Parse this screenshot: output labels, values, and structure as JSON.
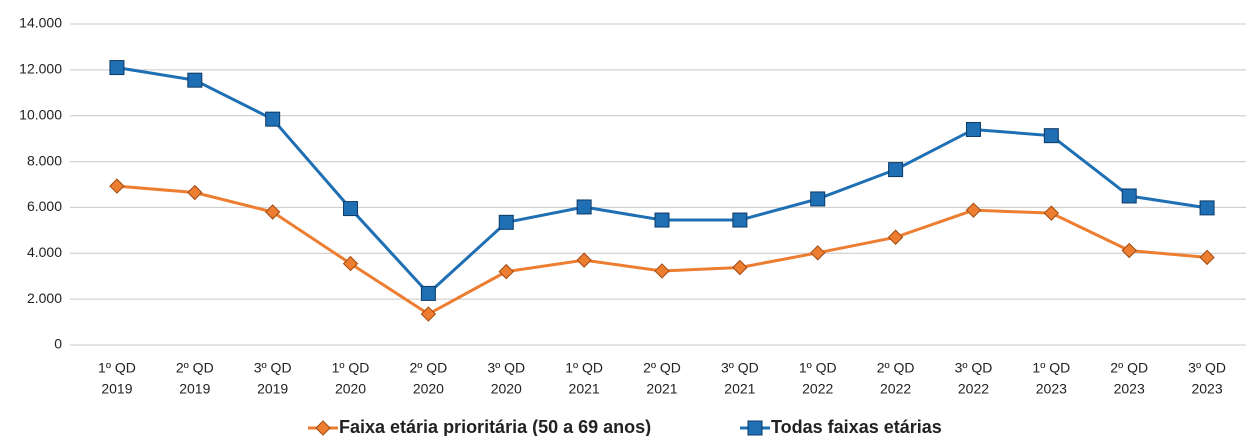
{
  "chart_data": {
    "type": "line",
    "categories": [
      [
        "1º QD",
        "2019"
      ],
      [
        "2º QD",
        "2019"
      ],
      [
        "3º QD",
        "2019"
      ],
      [
        "1º QD",
        "2020"
      ],
      [
        "2º QD",
        "2020"
      ],
      [
        "3º QD",
        "2020"
      ],
      [
        "1º QD",
        "2021"
      ],
      [
        "2º QD",
        "2021"
      ],
      [
        "3º QD",
        "2021"
      ],
      [
        "1º QD",
        "2022"
      ],
      [
        "2º QD",
        "2022"
      ],
      [
        "3º QD",
        "2022"
      ],
      [
        "1º QD",
        "2023"
      ],
      [
        "2º QD",
        "2023"
      ],
      [
        "3º QD",
        "2023"
      ]
    ],
    "series": [
      {
        "name": "Faixa etária prioritária (50 a 69 anos)",
        "color": "#ed7d31",
        "marker": "diamond",
        "values": [
          6930,
          6650,
          5800,
          3550,
          1350,
          3200,
          3700,
          3230,
          3380,
          4020,
          4700,
          5880,
          5750,
          4120,
          3820
        ]
      },
      {
        "name": "Todas faixas etárias",
        "color": "#1f6fb4",
        "marker": "square",
        "values": [
          12100,
          11550,
          9850,
          5950,
          2250,
          5350,
          6020,
          5450,
          5450,
          6370,
          7650,
          9400,
          9130,
          6500,
          5980
        ]
      }
    ],
    "ylim": [
      0,
      14000
    ],
    "yticks": [
      0,
      {
        "value": 2000,
        "label": "2.000"
      },
      {
        "value": 4000,
        "label": "4.000"
      },
      {
        "value": 6000,
        "label": "6.000"
      },
      {
        "value": 8000,
        "label": "8.000"
      },
      {
        "value": 10000,
        "label": "10.000"
      },
      {
        "value": 12000,
        "label": "12.000"
      },
      {
        "value": 14000,
        "label": "14.000"
      }
    ],
    "grid": true,
    "legend": "bottom"
  }
}
